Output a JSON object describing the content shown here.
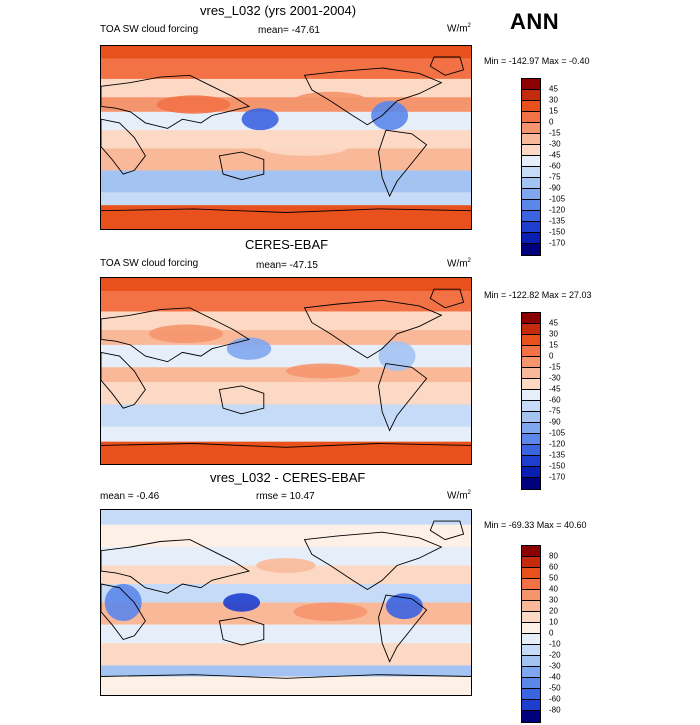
{
  "season": "ANN",
  "panels": [
    {
      "title": "vres_L032 (yrs 2001-2004)",
      "left_label": "TOA SW cloud forcing",
      "center_label": "mean= -47.61",
      "units_base": "W/m",
      "units_sup": "2",
      "minmax": "Min = -142.97 Max =  -0.40",
      "colorbar_ticks": [
        "45",
        "30",
        "15",
        "0",
        "-15",
        "-30",
        "-45",
        "-60",
        "-75",
        "-90",
        "-105",
        "-120",
        "-135",
        "-150",
        "-170"
      ],
      "colorbar_colors": [
        "#8b0000",
        "#c42b0d",
        "#e8501c",
        "#f27245",
        "#f5956d",
        "#f9b999",
        "#fcd9c4",
        "#e6eefa",
        "#c6dbf7",
        "#a3c3f2",
        "#7fa6ee",
        "#5b87ea",
        "#3b64e0",
        "#1e3fce",
        "#0a1fb2",
        "#00007d"
      ],
      "map_style": "control"
    },
    {
      "title": "CERES-EBAF",
      "left_label": "TOA SW cloud forcing",
      "center_label": "mean= -47.15",
      "units_base": "W/m",
      "units_sup": "2",
      "minmax": "Min = -122.82 Max =  27.03",
      "colorbar_ticks": [
        "45",
        "30",
        "15",
        "0",
        "-15",
        "-30",
        "-45",
        "-60",
        "-75",
        "-90",
        "-105",
        "-120",
        "-135",
        "-150",
        "-170"
      ],
      "colorbar_colors": [
        "#8b0000",
        "#c42b0d",
        "#e8501c",
        "#f27245",
        "#f5956d",
        "#f9b999",
        "#fcd9c4",
        "#e6eefa",
        "#c6dbf7",
        "#a3c3f2",
        "#7fa6ee",
        "#5b87ea",
        "#3b64e0",
        "#1e3fce",
        "#0a1fb2",
        "#00007d"
      ],
      "map_style": "obs"
    },
    {
      "title": "vres_L032 - CERES-EBAF",
      "left_label": "mean =  -0.46",
      "center_label": "rmse =  10.47",
      "units_base": "W/m",
      "units_sup": "2",
      "minmax": "Min = -69.33 Max =  40.60",
      "colorbar_ticks": [
        "80",
        "60",
        "50",
        "40",
        "30",
        "20",
        "10",
        "0",
        "-10",
        "-20",
        "-30",
        "-40",
        "-50",
        "-60",
        "-80"
      ],
      "colorbar_colors": [
        "#8b0000",
        "#c42b0d",
        "#e8501c",
        "#f27245",
        "#f5956d",
        "#f9b999",
        "#fcd9c4",
        "#fdf0e7",
        "#e6eefa",
        "#c6dbf7",
        "#a3c3f2",
        "#7fa6ee",
        "#5b87ea",
        "#3b64e0",
        "#1e3fce",
        "#00007d"
      ],
      "map_style": "diff"
    }
  ]
}
